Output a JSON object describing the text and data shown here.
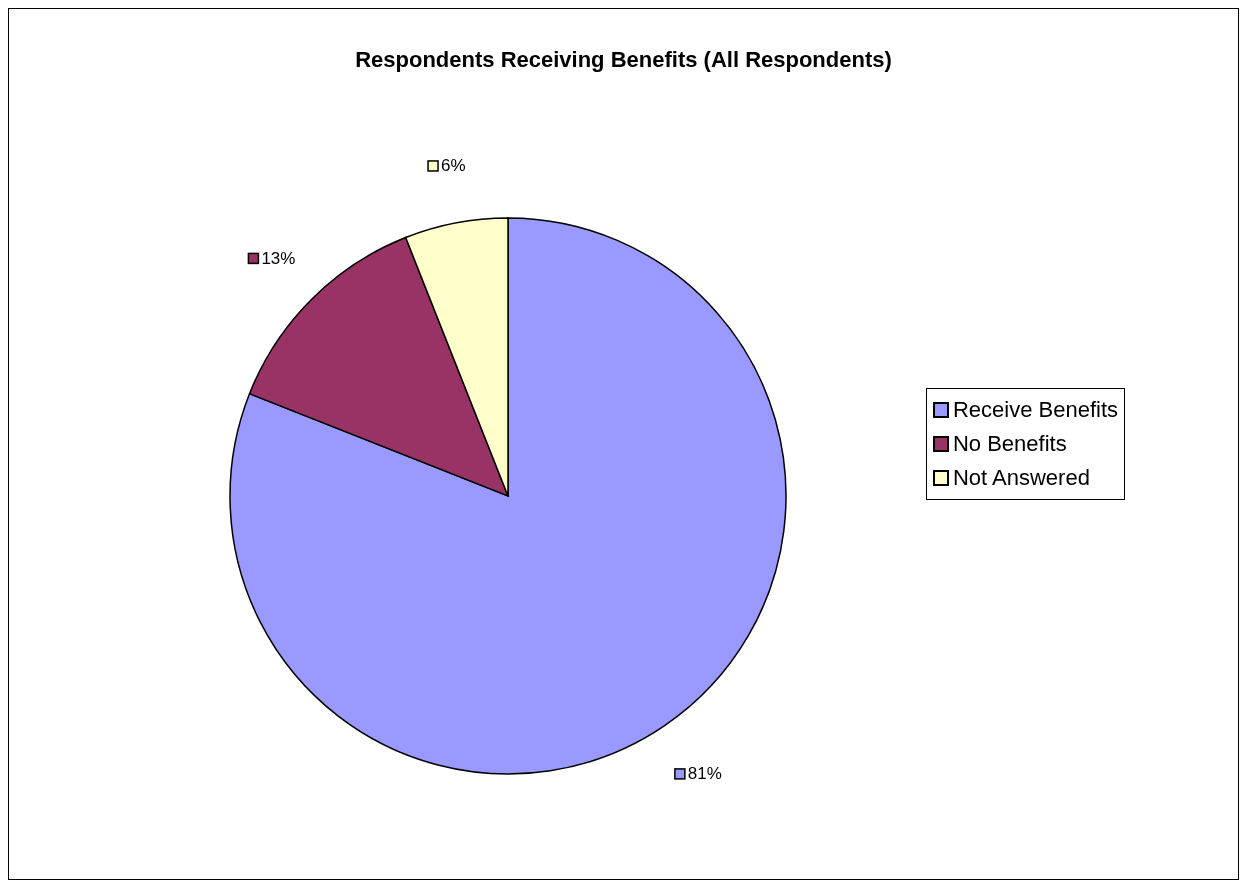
{
  "chart_data": {
    "type": "pie",
    "title": "Respondents Receiving Benefits (All Respondents)",
    "categories": [
      "Receive Benefits",
      "No Benefits",
      "Not Answered"
    ],
    "values": [
      81,
      13,
      6
    ],
    "colors": [
      "#9999ff",
      "#993366",
      "#ffffcc"
    ],
    "value_labels": [
      "81%",
      "13%",
      "6%"
    ],
    "legend": "right"
  }
}
